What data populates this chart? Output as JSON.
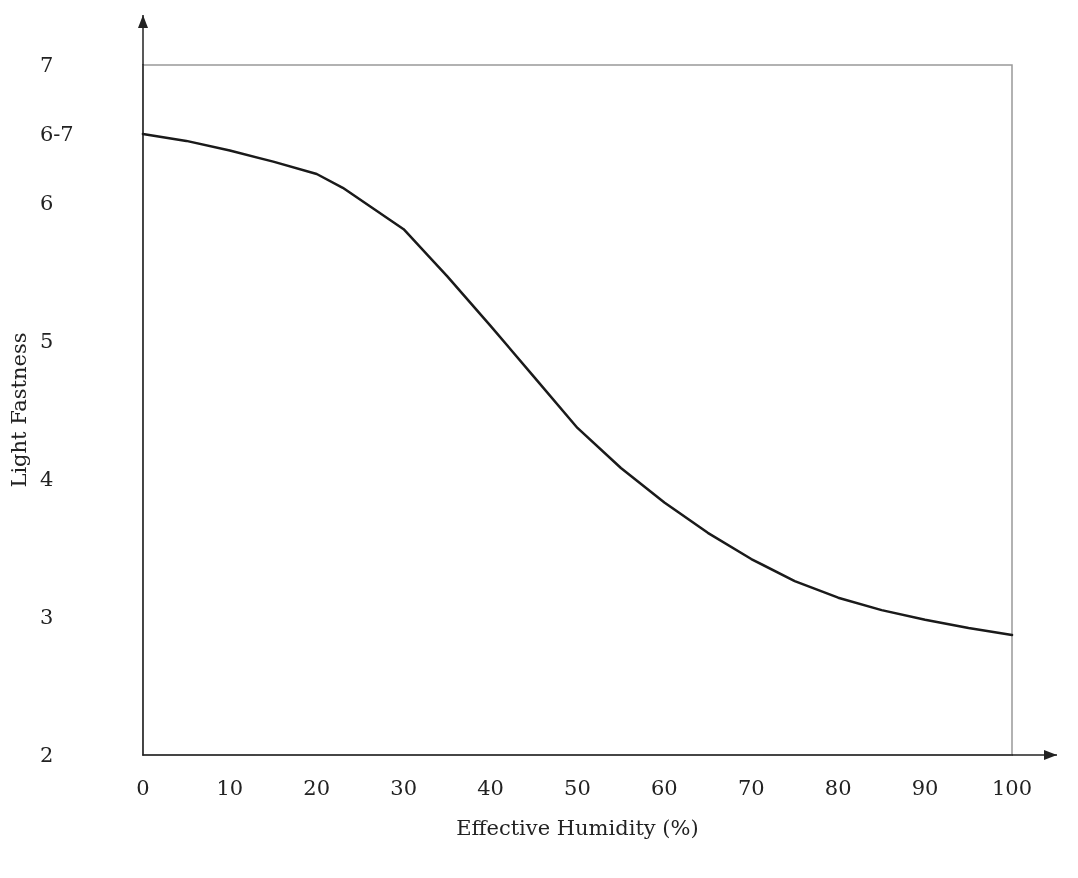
{
  "chart_data": {
    "type": "line",
    "xlabel": "Effective Humidity (%)",
    "ylabel": "Light Fastness",
    "x": [
      0,
      5,
      10,
      15,
      20,
      23,
      30,
      35,
      40,
      45,
      50,
      55,
      60,
      65,
      70,
      75,
      80,
      85,
      90,
      95,
      100
    ],
    "series": [
      {
        "color": "#1a1a1a",
        "values": [
          6.5,
          6.45,
          6.38,
          6.3,
          6.21,
          6.11,
          5.81,
          5.47,
          5.11,
          4.74,
          4.37,
          4.08,
          3.83,
          3.61,
          3.42,
          3.26,
          3.14,
          3.05,
          2.98,
          2.92,
          2.87
        ]
      }
    ],
    "xlim": [
      0,
      100
    ],
    "xticks": [
      0,
      10,
      20,
      30,
      40,
      50,
      60,
      70,
      80,
      90,
      100
    ],
    "ylim": [
      2,
      7
    ],
    "yticks": [
      2,
      3,
      4,
      5,
      6,
      {
        "value": 6.5,
        "label": "6-7"
      },
      7
    ],
    "grid": false,
    "marker": "none",
    "line_style": "solid"
  }
}
